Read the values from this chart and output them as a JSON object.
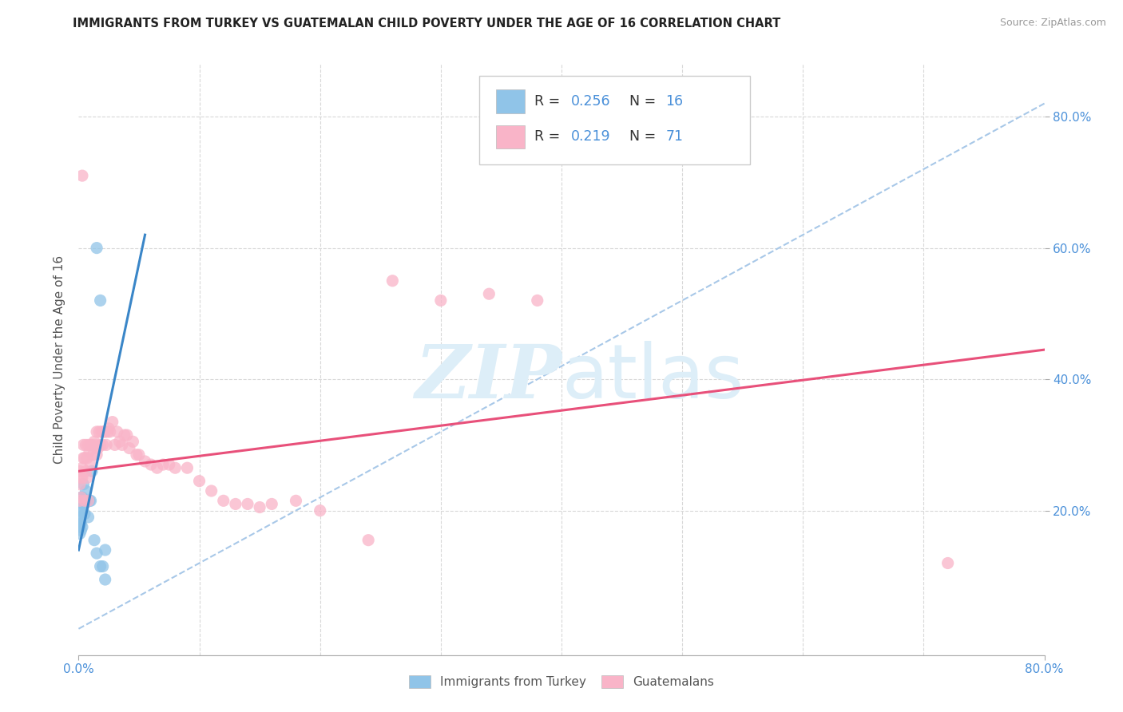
{
  "title": "IMMIGRANTS FROM TURKEY VS GUATEMALAN CHILD POVERTY UNDER THE AGE OF 16 CORRELATION CHART",
  "source": "Source: ZipAtlas.com",
  "ylabel": "Child Poverty Under the Age of 16",
  "ytick_vals": [
    0.2,
    0.4,
    0.6,
    0.8
  ],
  "xlim": [
    0.0,
    0.8
  ],
  "ylim": [
    -0.02,
    0.88
  ],
  "legend_label1": "Immigrants from Turkey",
  "legend_label2": "Guatemalans",
  "blue_color": "#90c4e8",
  "pink_color": "#f9b4c8",
  "blue_line_color": "#3a86c8",
  "pink_line_color": "#e8507a",
  "dashed_line_color": "#a8c8e8",
  "title_color": "#222222",
  "axis_label_color": "#4a90d9",
  "watermark_color": "#ddeef8",
  "blue_trend_x": [
    0.0,
    0.055
  ],
  "blue_trend_y": [
    0.14,
    0.62
  ],
  "pink_trend_x": [
    0.0,
    0.8
  ],
  "pink_trend_y": [
    0.26,
    0.445
  ],
  "dashed_trend_x": [
    0.0,
    0.8
  ],
  "dashed_trend_y": [
    0.02,
    0.82
  ],
  "blue_x": [
    0.001,
    0.001,
    0.001,
    0.001,
    0.002,
    0.002,
    0.002,
    0.002,
    0.002,
    0.003,
    0.003,
    0.003,
    0.004,
    0.004,
    0.005,
    0.005,
    0.006,
    0.007,
    0.008,
    0.009,
    0.01,
    0.011,
    0.013,
    0.015,
    0.018,
    0.02,
    0.022,
    0.015,
    0.018,
    0.022
  ],
  "blue_y": [
    0.165,
    0.175,
    0.185,
    0.19,
    0.17,
    0.18,
    0.2,
    0.215,
    0.22,
    0.175,
    0.2,
    0.22,
    0.21,
    0.24,
    0.195,
    0.21,
    0.23,
    0.215,
    0.19,
    0.215,
    0.215,
    0.26,
    0.155,
    0.135,
    0.115,
    0.115,
    0.095,
    0.6,
    0.52,
    0.14
  ],
  "pink_x": [
    0.001,
    0.001,
    0.001,
    0.002,
    0.002,
    0.003,
    0.003,
    0.003,
    0.004,
    0.004,
    0.005,
    0.005,
    0.006,
    0.006,
    0.007,
    0.007,
    0.008,
    0.008,
    0.009,
    0.01,
    0.01,
    0.011,
    0.012,
    0.013,
    0.014,
    0.015,
    0.015,
    0.016,
    0.017,
    0.018,
    0.019,
    0.02,
    0.021,
    0.022,
    0.023,
    0.024,
    0.025,
    0.026,
    0.028,
    0.03,
    0.032,
    0.034,
    0.036,
    0.038,
    0.04,
    0.042,
    0.045,
    0.048,
    0.05,
    0.055,
    0.06,
    0.065,
    0.07,
    0.075,
    0.08,
    0.09,
    0.1,
    0.11,
    0.12,
    0.13,
    0.14,
    0.15,
    0.16,
    0.18,
    0.2,
    0.24,
    0.26,
    0.3,
    0.34,
    0.38,
    0.72
  ],
  "pink_y": [
    0.215,
    0.24,
    0.26,
    0.22,
    0.25,
    0.25,
    0.265,
    0.71,
    0.28,
    0.3,
    0.215,
    0.28,
    0.26,
    0.3,
    0.25,
    0.28,
    0.215,
    0.3,
    0.29,
    0.27,
    0.3,
    0.3,
    0.285,
    0.305,
    0.3,
    0.285,
    0.32,
    0.295,
    0.32,
    0.3,
    0.32,
    0.3,
    0.32,
    0.32,
    0.3,
    0.32,
    0.325,
    0.32,
    0.335,
    0.3,
    0.32,
    0.305,
    0.3,
    0.315,
    0.315,
    0.295,
    0.305,
    0.285,
    0.285,
    0.275,
    0.27,
    0.265,
    0.27,
    0.27,
    0.265,
    0.265,
    0.245,
    0.23,
    0.215,
    0.21,
    0.21,
    0.205,
    0.21,
    0.215,
    0.2,
    0.155,
    0.55,
    0.52,
    0.53,
    0.52,
    0.12
  ]
}
